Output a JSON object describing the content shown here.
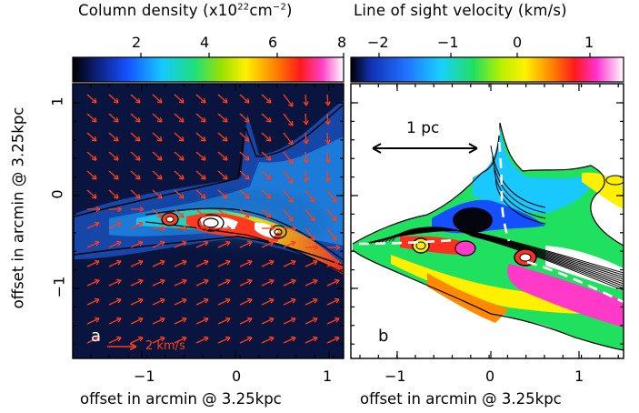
{
  "left_colorbar": {
    "title_pre": "Column density (x10",
    "title_exp": "22",
    "title_unit": "cm",
    "title_unit_exp": "−2",
    "title_post": ")",
    "ticks": [
      "2",
      "4",
      "6",
      "8"
    ],
    "range": [
      0.8,
      8
    ]
  },
  "right_colorbar": {
    "title": "Line of sight velocity (km/s)",
    "ticks": [
      "−2",
      "−1",
      "0",
      "1"
    ],
    "range": [
      -2.4,
      1.5
    ]
  },
  "panel_a": {
    "label": "a",
    "x_ticks": [
      "−1",
      "0",
      "1"
    ],
    "y_ticks": [
      "1",
      "0",
      "−1"
    ],
    "xlabel": "offset in arcmin @ 3.25kpc",
    "ylabel": "offset in arcmin @ 3.25kpc",
    "vector_scale_label": "2 km/s",
    "vector_color": "#ff3b1a"
  },
  "panel_b": {
    "label": "b",
    "x_ticks": [
      "−1",
      "0",
      "1"
    ],
    "xlabel": "offset in arcmin @ 3.25kpc",
    "scalebar_label": "1 pc"
  },
  "colors": {
    "background_a": "#0a1846",
    "frame": "#000000",
    "vectors": "#ff3b1a"
  }
}
